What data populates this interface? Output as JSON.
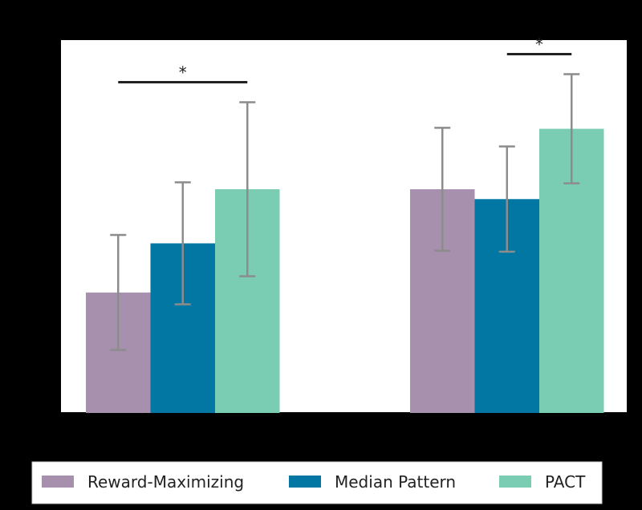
{
  "chart_data": {
    "type": "bar",
    "title": "",
    "xlabel": "",
    "ylabel": "",
    "ylim": [
      0,
      7.6
    ],
    "categories": [
      "",
      ""
    ],
    "series": [
      {
        "name": "Reward-Maximizing",
        "color": "#A78FAE",
        "values": [
          2.45,
          4.55
        ],
        "errors": [
          1.17,
          1.25
        ]
      },
      {
        "name": "Median Pattern",
        "color": "#0377A3",
        "values": [
          3.45,
          4.35
        ],
        "errors": [
          1.24,
          1.07
        ]
      },
      {
        "name": "PACT",
        "color": "#7ACCB3",
        "values": [
          4.55,
          5.78
        ],
        "errors": [
          1.77,
          1.11
        ]
      }
    ],
    "significance": [
      {
        "category_index": 0,
        "from_series": 0,
        "to_series": 2,
        "label": "*"
      },
      {
        "category_index": 1,
        "from_series": 1,
        "to_series": 2,
        "label": "*"
      }
    ],
    "error_bar_color": "#8C8C8C",
    "grid": false,
    "legend_position": "bottom"
  }
}
